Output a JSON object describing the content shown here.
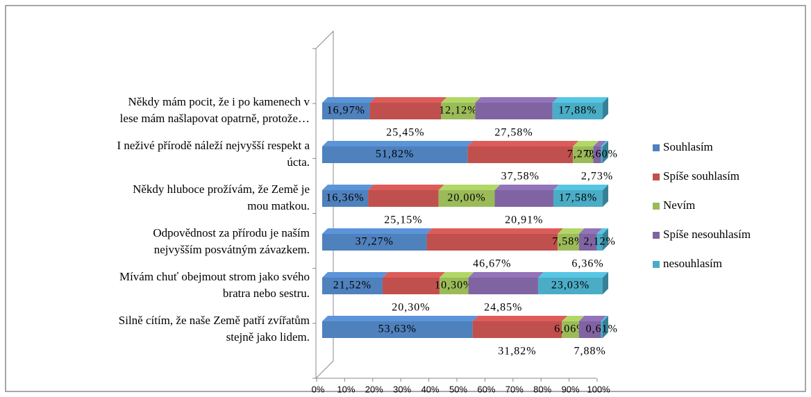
{
  "chart_data": {
    "type": "bar",
    "orientation": "horizontal",
    "stacked": true,
    "categories": [
      [
        "Někdy mám pocit, že i po kamenech v",
        "lese mám našlapovat opatrně, protože…"
      ],
      [
        "I neživé přírodě náleží nejvyšší respekt a",
        "úcta."
      ],
      [
        "Někdy hluboce prožívám, že Země je",
        "mou matkou."
      ],
      [
        "Odpovědnost za přírodu je naším",
        "nejvyšším posvátným závazkem."
      ],
      [
        "Mívám chuť obejmout strom jako svého",
        "bratra nebo sestru."
      ],
      [
        "Silně cítím, že naše Země patří zvířatům",
        "stejně jako lidem."
      ]
    ],
    "series": [
      {
        "name": "Souhlasím",
        "color": "#4f81bd",
        "values": [
          16.97,
          51.82,
          16.36,
          37.27,
          21.52,
          53.63
        ],
        "value_labels": [
          "16,97%",
          "51,82%",
          "16,36%",
          "37,27%",
          "21,52%",
          "53,63%"
        ]
      },
      {
        "name": "Spíše souhlasím",
        "color": "#c0504d",
        "values": [
          25.45,
          37.58,
          25.15,
          46.67,
          20.3,
          31.82
        ],
        "value_labels": [
          "25,45%",
          "37,58%",
          "25,15%",
          "46,67%",
          "20,30%",
          "31,82%"
        ]
      },
      {
        "name": "Nevím",
        "color": "#9bbb59",
        "values": [
          12.12,
          7.27,
          20.0,
          7.58,
          10.3,
          6.06
        ],
        "value_labels": [
          "12,12%",
          "7,27%",
          "20,00%",
          "7,58%",
          "10,30%",
          "6,06%"
        ]
      },
      {
        "name": "Spíše nesouhlasím",
        "color": "#8064a2",
        "values": [
          27.58,
          2.73,
          20.91,
          6.36,
          24.85,
          7.88
        ],
        "value_labels": [
          "27,58%",
          "2,73%",
          "20,91%",
          "6,36%",
          "24,85%",
          "7,88%"
        ]
      },
      {
        "name": "nesouhlasím",
        "color": "#4bacc6",
        "values": [
          17.88,
          0.6,
          17.58,
          2.12,
          23.03,
          0.61
        ],
        "value_labels": [
          "17,88%",
          "0,60%",
          "17,58%",
          "2,12%",
          "23,03%",
          "0,61%"
        ]
      }
    ],
    "xlim": [
      0,
      100
    ],
    "xticks": [
      {
        "value": 0,
        "label": "0%"
      },
      {
        "value": 10,
        "label": "10%"
      },
      {
        "value": 20,
        "label": "20%"
      },
      {
        "value": 30,
        "label": "30%"
      },
      {
        "value": 40,
        "label": "40%"
      },
      {
        "value": 50,
        "label": "50%"
      },
      {
        "value": 60,
        "label": "60%"
      },
      {
        "value": 70,
        "label": "70%"
      },
      {
        "value": 80,
        "label": "80%"
      },
      {
        "value": 90,
        "label": "90%"
      },
      {
        "value": 100,
        "label": "100%"
      }
    ],
    "legend": "right"
  }
}
